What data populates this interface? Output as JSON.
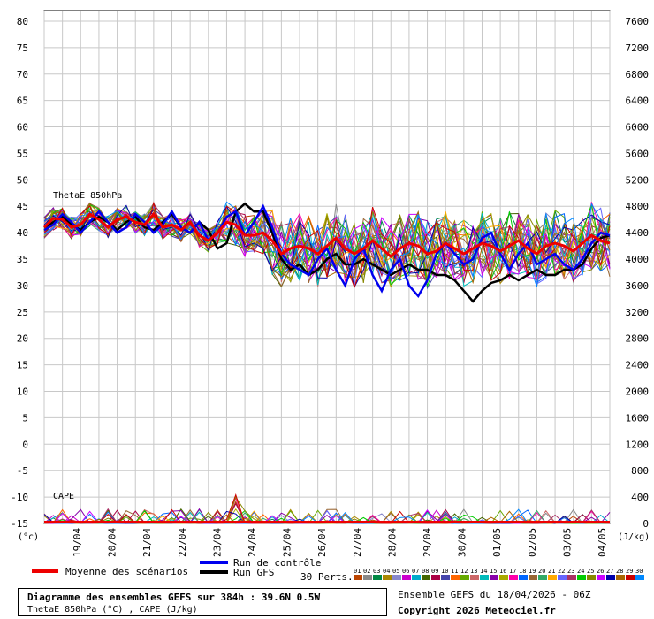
{
  "chart_data": {
    "type": "line",
    "y_label_left": "(°c)",
    "y_label_right": "(J/kg)",
    "y_left_ticks": [
      80,
      75,
      70,
      65,
      60,
      55,
      50,
      45,
      40,
      35,
      30,
      25,
      20,
      15,
      10,
      5,
      0,
      -5,
      -10,
      -15
    ],
    "y_right_ticks": [
      7600,
      7200,
      6800,
      6400,
      6000,
      5600,
      5200,
      4800,
      4400,
      4000,
      3600,
      3200,
      2800,
      2400,
      2000,
      1600,
      1200,
      800,
      400,
      0
    ],
    "ylim_left": [
      -15,
      82
    ],
    "x_tick_labels": [
      "19/04",
      "20/04",
      "21/04",
      "22/04",
      "23/04",
      "24/04",
      "25/04",
      "26/04",
      "27/04",
      "28/04",
      "29/04",
      "30/04",
      "01/05",
      "02/05",
      "03/05",
      "04/05"
    ],
    "annotations": {
      "thetae": "ThetaE 850hPa",
      "cape": "CAPE"
    },
    "grid": true,
    "series": [
      {
        "name": "Moyenne des scénarios",
        "color": "#ee0000",
        "values": [
          41,
          42.7,
          42.5,
          41,
          41.5,
          43.5,
          42.5,
          41,
          42.5,
          43,
          42,
          41.5,
          43.5,
          41,
          41.5,
          40.5,
          42,
          39.5,
          38.5,
          40,
          42,
          41.5,
          39.5,
          39.5,
          40,
          38.5,
          36,
          37,
          37.5,
          37,
          36,
          37.5,
          39,
          37,
          36,
          37,
          38.5,
          37,
          35.5,
          37,
          38,
          37.5,
          36,
          36.5,
          38,
          37,
          36,
          37,
          38,
          37.5,
          36.5,
          37.5,
          38.5,
          37,
          36,
          37.5,
          38,
          37.5,
          36.5,
          38,
          39.5,
          38.5,
          38
        ]
      },
      {
        "name": "Run de contrôle",
        "color": "#0000ee",
        "values": [
          40.5,
          41.5,
          43.5,
          42,
          40,
          42,
          44,
          42,
          40,
          41,
          43.5,
          42,
          40,
          41.5,
          44,
          41,
          40,
          42,
          38.5,
          40,
          43,
          44,
          39.5,
          42,
          45,
          41,
          36,
          34,
          33,
          32,
          35,
          37,
          33,
          30,
          35,
          37,
          32,
          29,
          33,
          35,
          30,
          28,
          31,
          36,
          38,
          36,
          34,
          35,
          39,
          40,
          36,
          33,
          36,
          38,
          34,
          35,
          36,
          34,
          33,
          35,
          38,
          40,
          39.5
        ]
      },
      {
        "name": "Run GFS",
        "color": "#000000",
        "values": [
          41,
          42,
          43,
          41.5,
          40.5,
          42,
          43,
          42,
          40.5,
          42,
          43,
          41,
          40.5,
          42,
          43.5,
          41,
          40,
          42,
          40.5,
          37,
          38,
          44,
          45.5,
          44,
          44,
          40,
          35,
          33,
          34,
          32,
          33,
          35,
          36,
          34,
          34,
          35,
          34,
          33,
          32,
          33,
          34,
          33,
          33,
          32,
          32,
          31,
          29,
          27,
          29,
          30.5,
          31,
          32,
          31,
          32,
          33,
          32,
          32,
          33,
          33,
          34,
          37,
          39,
          39.5
        ]
      }
    ],
    "members": [
      "01",
      "02",
      "03",
      "04",
      "05",
      "06",
      "07",
      "08",
      "09",
      "10",
      "11",
      "12",
      "13",
      "14",
      "15",
      "16",
      "17",
      "18",
      "19",
      "20",
      "21",
      "22",
      "23",
      "24",
      "25",
      "26",
      "27",
      "28",
      "29",
      "30"
    ],
    "member_colors": [
      "#bb4400",
      "#888888",
      "#008844",
      "#aa8800",
      "#8888cc",
      "#cc00cc",
      "#00aacc",
      "#446600",
      "#aa0044",
      "#4444aa",
      "#ff6600",
      "#66aa00",
      "#cc6666",
      "#00bbbb",
      "#8800aa",
      "#aaaa00",
      "#ff00aa",
      "#0066ff",
      "#996633",
      "#33aa66",
      "#ffaa00",
      "#6666ff",
      "#aa3366",
      "#00cc00",
      "#888800",
      "#cc00ff",
      "#0000aa",
      "#aa6600",
      "#cc0000",
      "#0088ff"
    ]
  },
  "legend": {
    "mean_label": "Moyenne des scénarios",
    "control_label": "Run de contrôle",
    "gfs_label": "Run GFS",
    "perts_label": "30 Perts."
  },
  "footer": {
    "title": "Diagramme des ensembles GEFS sur 384h : 39.6N 0.5W",
    "subtitle": "ThetaE 850hPa (°C) , CAPE (J/kg)",
    "ensemble_info": "Ensemble GEFS du 18/04/2026 - 06Z",
    "copyright": "Copyright 2026 Meteociel.fr"
  },
  "colors": {
    "mean": "#ee0000",
    "control": "#0000ee",
    "gfs": "#000000",
    "grid": "#c8c8c8"
  }
}
